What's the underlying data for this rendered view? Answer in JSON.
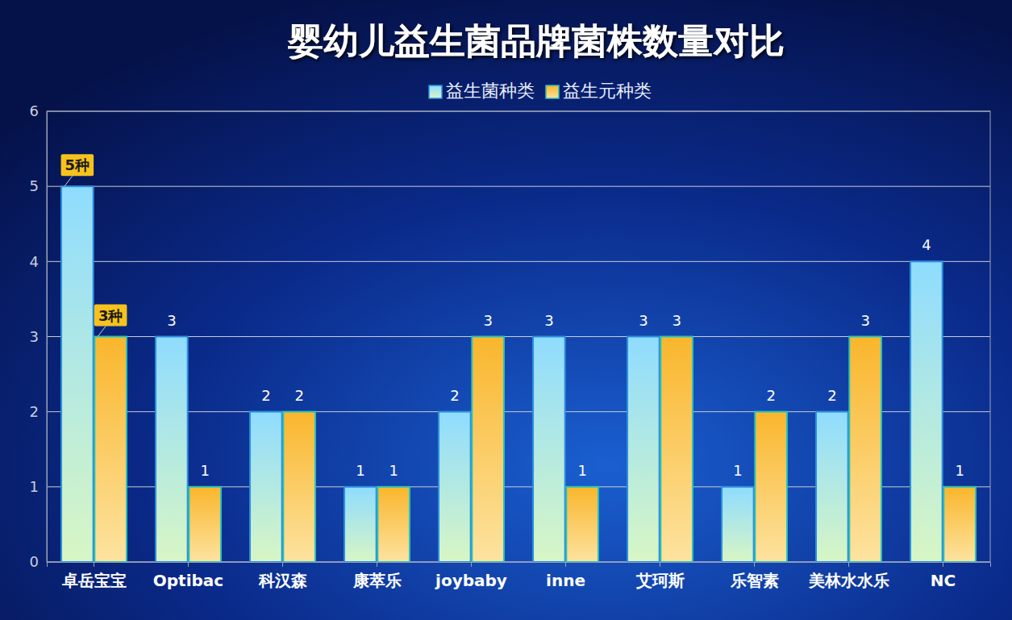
{
  "chart_data": {
    "type": "bar",
    "title": "婴幼儿益生菌品牌菌株数量对比",
    "categories": [
      "卓岳宝宝",
      "Optibac",
      "科汉森",
      "康萃乐",
      "joybaby",
      "inne",
      "艾珂斯",
      "乐智素",
      "美林水水乐",
      "NC"
    ],
    "series": [
      {
        "name": "益生菌种类",
        "color": "#8fdcff",
        "values": [
          5,
          3,
          2,
          1,
          2,
          3,
          3,
          1,
          2,
          4
        ],
        "value_labels": [
          "5种",
          "3",
          "2",
          "1",
          "2",
          "3",
          "3",
          "1",
          "2",
          "4"
        ]
      },
      {
        "name": "益生元种类",
        "color": "#f9b62c",
        "values": [
          3,
          1,
          2,
          1,
          3,
          1,
          3,
          2,
          3,
          1
        ],
        "value_labels": [
          "3种",
          "1",
          "2",
          "1",
          "3",
          "1",
          "3",
          "2",
          "3",
          "1"
        ]
      }
    ],
    "ylim": [
      0,
      6
    ],
    "yticks": [
      0,
      1,
      2,
      3,
      4,
      5,
      6
    ],
    "grid": true,
    "legend": "top",
    "data_labels": true
  }
}
